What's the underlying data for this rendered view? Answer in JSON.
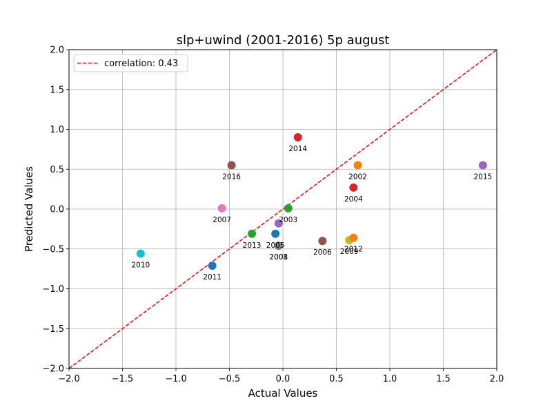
{
  "chart_data": {
    "type": "scatter",
    "title": "slp+uwind (2001-2016) 5p august",
    "xlabel": "Actual Values",
    "ylabel": "Predicted Values",
    "xlim": [
      -2.0,
      2.0
    ],
    "ylim": [
      -2.0,
      2.0
    ],
    "xticks": [
      -2.0,
      -1.5,
      -1.0,
      -0.5,
      0.0,
      0.5,
      1.0,
      1.5,
      2.0
    ],
    "yticks": [
      -2.0,
      -1.5,
      -1.0,
      -0.5,
      0.0,
      0.5,
      1.0,
      1.5,
      2.0
    ],
    "xtick_labels": [
      "−2.0",
      "−1.5",
      "−1.0",
      "−0.5",
      "0.0",
      "0.5",
      "1.0",
      "1.5",
      "2.0"
    ],
    "ytick_labels": [
      "−2.0",
      "−1.5",
      "−1.0",
      "−0.5",
      "0.0",
      "0.5",
      "1.0",
      "1.5",
      "2.0"
    ],
    "grid": true,
    "legend": {
      "placement": "top-left",
      "entries": [
        "correlation: 0.43"
      ]
    },
    "reference_line": {
      "style": "dashed",
      "color": "#ff0000",
      "from": [
        -2.0,
        -2.0
      ],
      "to": [
        2.0,
        2.0
      ]
    },
    "points": [
      {
        "label": "2001",
        "x": -0.04,
        "y": -0.46,
        "color": "#7f7f7f"
      },
      {
        "label": "2002",
        "x": 0.7,
        "y": 0.55,
        "color": "#ff7f0e"
      },
      {
        "label": "2003",
        "x": 0.05,
        "y": 0.01,
        "color": "#2ca02c"
      },
      {
        "label": "2004",
        "x": 0.66,
        "y": 0.27,
        "color": "#d62728"
      },
      {
        "label": "2005",
        "x": -0.07,
        "y": -0.31,
        "color": "#1f77b4"
      },
      {
        "label": "2006",
        "x": 0.37,
        "y": -0.4,
        "color": "#8c564b"
      },
      {
        "label": "2007",
        "x": -0.57,
        "y": 0.01,
        "color": "#e377c2"
      },
      {
        "label": "2008",
        "x": -0.04,
        "y": -0.46,
        "color": "#7f7f7f"
      },
      {
        "label": "2009",
        "x": 0.62,
        "y": -0.39,
        "color": "#bcbd22"
      },
      {
        "label": "2010",
        "x": -1.33,
        "y": -0.56,
        "color": "#17becf"
      },
      {
        "label": "2011",
        "x": -0.66,
        "y": -0.71,
        "color": "#1f77b4"
      },
      {
        "label": "2012",
        "x": 0.66,
        "y": -0.36,
        "color": "#ff7f0e"
      },
      {
        "label": "2013",
        "x": -0.29,
        "y": -0.31,
        "color": "#2ca02c"
      },
      {
        "label": "2014",
        "x": 0.14,
        "y": 0.9,
        "color": "#d62728"
      },
      {
        "label": "2015",
        "x": 1.87,
        "y": 0.55,
        "color": "#9467bd"
      },
      {
        "label": "2016",
        "x": -0.48,
        "y": 0.55,
        "color": "#8c564b"
      },
      {
        "label": "",
        "x": -0.04,
        "y": -0.18,
        "color": "#9467bd"
      }
    ]
  }
}
